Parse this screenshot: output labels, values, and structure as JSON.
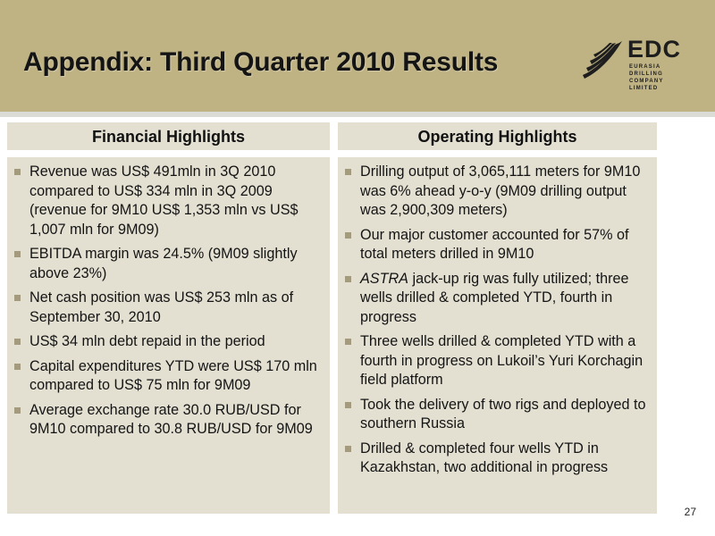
{
  "slide": {
    "title": "Appendix: Third Quarter 2010 Results",
    "page_number": "27"
  },
  "logo": {
    "name": "EDC",
    "subtitle": "EURASIA DRILLING COMPANY LIMITED"
  },
  "financial": {
    "heading": "Financial Highlights",
    "items": [
      "Revenue was US$ 491mln in 3Q 2010 compared to US$ 334 mln in 3Q 2009 (revenue for 9M10 US$ 1,353 mln vs US$ 1,007 mln for 9M09)",
      "EBITDA margin was 24.5% (9M09 slightly above 23%)",
      "Net cash position was US$ 253 mln as of September 30, 2010",
      "US$ 34 mln debt repaid in the period",
      "Capital expenditures YTD were US$ 170 mln compared to US$ 75 mln for 9M09",
      "Average exchange rate 30.0 RUB/USD for 9M10 compared to 30.8 RUB/USD for 9M09"
    ]
  },
  "operating": {
    "heading": "Operating Highlights",
    "items": [
      {
        "text": "Drilling output of 3,065,111 meters for 9M10 was 6% ahead y-o-y (9M09 drilling output was 2,900,309 meters)"
      },
      {
        "text": "Our major customer accounted for 57% of total meters drilled in 9M10"
      },
      {
        "emph": "ASTRA",
        "text": " jack-up rig was fully utilized; three wells drilled & completed YTD, fourth in progress"
      },
      {
        "text": "Three wells drilled & completed YTD with a fourth in progress on Lukoil’s Yuri Korchagin field platform"
      },
      {
        "text": "Took the delivery of two rigs and deployed to southern Russia"
      },
      {
        "text": "Drilled & completed four wells YTD in Kazakhstan, two additional in progress"
      }
    ]
  },
  "colors": {
    "header_band": "#bfb283",
    "panel": "#e3e0d2",
    "bullet": "#a49a7e"
  }
}
